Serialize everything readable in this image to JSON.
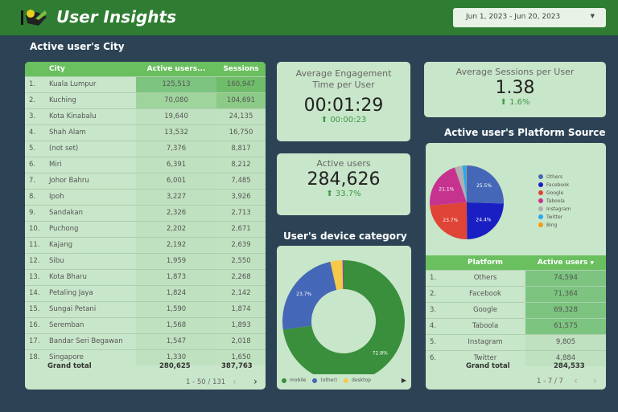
{
  "header": {
    "title": "User Insights",
    "date_range": "Jun 1, 2023 - Jun 20, 2023"
  },
  "city_table": {
    "title": "Active user's City",
    "columns": [
      "City",
      "Active users...",
      "Sessions"
    ],
    "rows": [
      [
        "1.",
        "Kuala Lumpur",
        "125,513",
        "160,947"
      ],
      [
        "2.",
        "Kuching",
        "70,080",
        "104,691"
      ],
      [
        "3.",
        "Kota Kinabalu",
        "19,640",
        "24,135"
      ],
      [
        "4.",
        "Shah Alam",
        "13,532",
        "16,750"
      ],
      [
        "5.",
        "(not set)",
        "7,376",
        "8,817"
      ],
      [
        "6.",
        "Miri",
        "6,391",
        "8,212"
      ],
      [
        "7.",
        "Johor Bahru",
        "6,001",
        "7,485"
      ],
      [
        "8.",
        "Ipoh",
        "3,227",
        "3,926"
      ],
      [
        "9.",
        "Sandakan",
        "2,326",
        "2,713"
      ],
      [
        "10.",
        "Puchong",
        "2,202",
        "2,671"
      ],
      [
        "11.",
        "Kajang",
        "2,192",
        "2,639"
      ],
      [
        "12.",
        "Sibu",
        "1,959",
        "2,550"
      ],
      [
        "13.",
        "Kota Bharu",
        "1,873",
        "2,268"
      ],
      [
        "14.",
        "Petaling Jaya",
        "1,824",
        "2,142"
      ],
      [
        "15.",
        "Sungai Petani",
        "1,590",
        "1,874"
      ],
      [
        "16.",
        "Seremban",
        "1,568",
        "1,893"
      ],
      [
        "17.",
        "Bandar Seri Begawan",
        "1,547",
        "2,018"
      ],
      [
        "18.",
        "Singapore",
        "1,330",
        "1,650"
      ]
    ],
    "grand_total": {
      "label": "Grand total",
      "active_users": "280,625",
      "sessions": "387,763"
    },
    "pagination": "1 - 50 / 131"
  },
  "kpis": {
    "engagement": {
      "label": "Average Engagement Time per User",
      "value": "00:01:29",
      "delta": "00:00:23"
    },
    "active_users": {
      "label": "Active users",
      "value": "284,626",
      "delta": "33.7%"
    },
    "sessions_per_user": {
      "label": "Average Sessions per User",
      "value": "1.38",
      "delta": "1.6%"
    }
  },
  "device": {
    "title": "User's device category",
    "slices": [
      {
        "name": "mobile",
        "value": 72.8,
        "color": "#3a8f3d",
        "label": "72.8%"
      },
      {
        "name": "(other)",
        "value": 23.7,
        "color": "#4567b7",
        "label": "23.7%"
      },
      {
        "name": "desktop",
        "value": 3.2,
        "color": "#f7c948",
        "label": ""
      },
      {
        "name": "",
        "value": 0.3,
        "color": "#8e44ad",
        "label": ""
      }
    ]
  },
  "platform": {
    "title": "Active user's Platform Source",
    "slices": [
      {
        "name": "Others",
        "value": 25.5,
        "color": "#4567b7",
        "label": "25.5%"
      },
      {
        "name": "Facebook",
        "value": 24.4,
        "color": "#1a1fc4",
        "label": "24.4%"
      },
      {
        "name": "Google",
        "value": 23.7,
        "color": "#e04436",
        "label": "23.7%"
      },
      {
        "name": "Taboola",
        "value": 21.1,
        "color": "#c6338f",
        "label": "21.1%"
      },
      {
        "name": "Instagram",
        "value": 3.4,
        "color": "#b0b0b0",
        "label": ""
      },
      {
        "name": "Twitter",
        "value": 1.7,
        "color": "#29a8f0",
        "label": ""
      },
      {
        "name": "Bing",
        "value": 0.2,
        "color": "#f39c12",
        "label": ""
      }
    ],
    "columns": [
      "Platform",
      "Active users"
    ],
    "rows": [
      [
        "1.",
        "Others",
        "74,594"
      ],
      [
        "2.",
        "Facebook",
        "71,364"
      ],
      [
        "3.",
        "Google",
        "69,328"
      ],
      [
        "4.",
        "Taboola",
        "61,575"
      ],
      [
        "5.",
        "Instagram",
        "9,805"
      ],
      [
        "6.",
        "Twitter",
        "4,884"
      ]
    ],
    "grand_total": {
      "label": "Grand total",
      "value": "284,533"
    },
    "pagination": "1 - 7 / 7"
  }
}
